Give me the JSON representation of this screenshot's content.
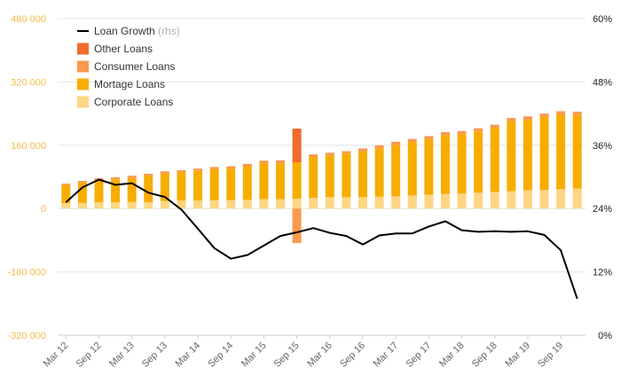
{
  "chart_data": {
    "type": "bar",
    "stacked": true,
    "categories": [
      "Mar 12",
      "Jun 12",
      "Sep 12",
      "Dec 12",
      "Mar 13",
      "Jun 13",
      "Sep 13",
      "Dec 13",
      "Mar 14",
      "Jun 14",
      "Sep 14",
      "Dec 14",
      "Mar 15",
      "Jun 15",
      "Sep 15",
      "Dec 15",
      "Mar 16",
      "Jun 16",
      "Sep 16",
      "Dec 16",
      "Mar 17",
      "Jun 17",
      "Sep 17",
      "Dec 17",
      "Mar 18",
      "Jun 18",
      "Sep 18",
      "Dec 18",
      "Mar 19",
      "Jun 19",
      "Sep 19",
      "Dec 19"
    ],
    "x_tick_labels": [
      "Mar 12",
      "Sep 12",
      "Mar 13",
      "Sep 13",
      "Mar 14",
      "Sep 14",
      "Mar 15",
      "Sep 15",
      "Mar 16",
      "Sep 16",
      "Mar 17",
      "Sep 17",
      "Mar 18",
      "Sep 18",
      "Mar 19",
      "Sep 19"
    ],
    "series": [
      {
        "name": "Corporate Loans",
        "color": "#fdd584",
        "axis": "left",
        "values": [
          14000,
          14000,
          16000,
          16000,
          17000,
          16000,
          19000,
          20000,
          20000,
          21000,
          21000,
          22000,
          24000,
          24000,
          25000,
          27000,
          29000,
          29000,
          29000,
          30000,
          31000,
          33000,
          35000,
          37000,
          38000,
          40000,
          42000,
          44000,
          46000,
          47000,
          49000,
          51000
        ]
      },
      {
        "name": "Mortage Loans",
        "color": "#f7ad00",
        "axis": "left",
        "values": [
          45000,
          52000,
          55000,
          58000,
          60000,
          67000,
          69000,
          72000,
          75000,
          78000,
          80000,
          85000,
          90000,
          90000,
          92000,
          103000,
          105000,
          110000,
          115000,
          122000,
          130000,
          135000,
          140000,
          148000,
          150000,
          155000,
          162000,
          177000,
          178000,
          184000,
          188000,
          185000
        ]
      },
      {
        "name": "Consumer Loans",
        "color": "#f99a4c",
        "axis": "left",
        "values": [
          4000,
          4000,
          6000,
          5000,
          6000,
          5000,
          6000,
          5000,
          6000,
          6000,
          6000,
          6000,
          7000,
          8000,
          -87000,
          7000,
          7000,
          6000,
          8000,
          8000,
          8000,
          8000,
          8000,
          8000,
          8000,
          8000,
          8000,
          8000,
          9000,
          9000,
          9000,
          9000
        ]
      },
      {
        "name": "Other Loans",
        "color": "#f26a2e",
        "axis": "left",
        "values": [
          0,
          0,
          0,
          0,
          0,
          0,
          0,
          0,
          0,
          0,
          0,
          0,
          0,
          0,
          85000,
          0,
          0,
          0,
          0,
          0,
          0,
          0,
          0,
          0,
          0,
          0,
          0,
          0,
          0,
          0,
          0,
          0
        ]
      },
      {
        "name": "Loan Growth",
        "note": "(rhs)",
        "type": "line",
        "color": "#000000",
        "axis": "right",
        "values": [
          25.2,
          28.0,
          29.5,
          28.5,
          28.8,
          27.0,
          26.2,
          23.8,
          20.2,
          16.5,
          14.5,
          15.2,
          17.0,
          18.8,
          19.5,
          20.3,
          19.4,
          18.8,
          17.2,
          18.9,
          19.3,
          19.3,
          20.6,
          21.6,
          19.9,
          19.6,
          19.7,
          19.6,
          19.7,
          19.0,
          16.1,
          6.9
        ]
      }
    ],
    "y_left": {
      "min": -320000,
      "max": 480000,
      "ticks": [
        -320000,
        -160000,
        0,
        160000,
        320000,
        480000
      ],
      "tick_labels": [
        "-320 000",
        "-160 000",
        "0",
        "160 000",
        "320 000",
        "480 000"
      ]
    },
    "y_right": {
      "min": 0,
      "max": 60,
      "ticks": [
        0,
        12,
        24,
        36,
        48,
        60
      ],
      "tick_labels": [
        "0%",
        "12%",
        "24%",
        "36%",
        "48%",
        "60%"
      ]
    },
    "legend": {
      "position": "top-left",
      "order": [
        "Loan Growth",
        "Other Loans",
        "Consumer Loans",
        "Mortage Loans",
        "Corporate Loans"
      ]
    },
    "grid": {
      "horizontal": true,
      "vertical": false,
      "color": "#e6e6e6"
    }
  }
}
